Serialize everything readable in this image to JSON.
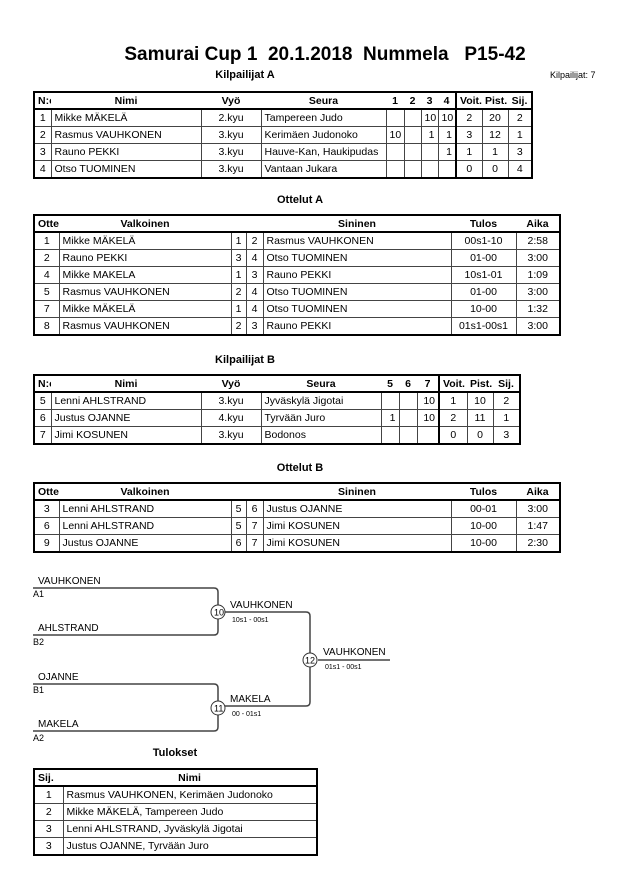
{
  "title": "Samurai Cup 1  20.1.2018  Nummela   P15-42",
  "competitor_count": "Kilpailijat: 7",
  "comp_a": {
    "title": "Kilpailijat A",
    "headers": [
      "N:o",
      "Nimi",
      "Vyö",
      "Seura",
      "1",
      "2",
      "3",
      "4",
      "Voit.",
      "Pist.",
      "Sij."
    ],
    "rows": [
      [
        "1",
        "Mikke MÄKELÄ",
        "2.kyu",
        "Tampereen Judo",
        "",
        "",
        "10",
        "10",
        "2",
        "20",
        "2"
      ],
      [
        "2",
        "Rasmus VAUHKONEN",
        "3.kyu",
        "Kerimäen Judonoko",
        "10",
        "",
        "1",
        "1",
        "3",
        "12",
        "1"
      ],
      [
        "3",
        "Rauno PEKKI",
        "3.kyu",
        "Hauve-Kan, Haukipudas",
        "",
        "",
        "",
        "1",
        "1",
        "1",
        "3"
      ],
      [
        "4",
        "Otso TUOMINEN",
        "3.kyu",
        "Vantaan Jukara",
        "",
        "",
        "",
        "",
        "0",
        "0",
        "4"
      ]
    ]
  },
  "matches_a": {
    "title": "Ottelut A",
    "headers": [
      "Ottelu",
      "Valkoinen",
      "",
      "",
      "Sininen",
      "Tulos",
      "Aika"
    ],
    "rows": [
      [
        "1",
        "Mikke MÄKELÄ",
        "1",
        "2",
        "Rasmus VAUHKONEN",
        "00s1-10",
        "2:58"
      ],
      [
        "2",
        "Rauno PEKKI",
        "3",
        "4",
        "Otso TUOMINEN",
        "01-00",
        "3:00"
      ],
      [
        "4",
        "Mikke MAKELA",
        "1",
        "3",
        "Rauno PEKKI",
        "10s1-01",
        "1:09"
      ],
      [
        "5",
        "Rasmus VAUHKONEN",
        "2",
        "4",
        "Otso TUOMINEN",
        "01-00",
        "3:00"
      ],
      [
        "7",
        "Mikke MÄKELÄ",
        "1",
        "4",
        "Otso TUOMINEN",
        "10-00",
        "1:32"
      ],
      [
        "8",
        "Rasmus VAUHKONEN",
        "2",
        "3",
        "Rauno PEKKI",
        "01s1-00s1",
        "3:00"
      ]
    ]
  },
  "comp_b": {
    "title": "Kilpailijat B",
    "headers": [
      "N:o",
      "Nimi",
      "Vyö",
      "Seura",
      "5",
      "6",
      "7",
      "Voit.",
      "Pist.",
      "Sij."
    ],
    "rows": [
      [
        "5",
        "Lenni AHLSTRAND",
        "3.kyu",
        "Jyväskylä Jigotai",
        "",
        "",
        "10",
        "1",
        "10",
        "2"
      ],
      [
        "6",
        "Justus OJANNE",
        "4.kyu",
        "Tyrvään Juro",
        "1",
        "",
        "10",
        "2",
        "11",
        "1"
      ],
      [
        "7",
        "Jimi KOSUNEN",
        "3.kyu",
        "Bodonos",
        "",
        "",
        "",
        "0",
        "0",
        "3"
      ]
    ]
  },
  "matches_b": {
    "title": "Ottelut B",
    "headers": [
      "Ottelu",
      "Valkoinen",
      "",
      "",
      "Sininen",
      "Tulos",
      "Aika"
    ],
    "rows": [
      [
        "3",
        "Lenni AHLSTRAND",
        "5",
        "6",
        "Justus OJANNE",
        "00-01",
        "3:00"
      ],
      [
        "6",
        "Lenni AHLSTRAND",
        "5",
        "7",
        "Jimi KOSUNEN",
        "10-00",
        "1:47"
      ],
      [
        "9",
        "Justus OJANNE",
        "6",
        "7",
        "Jimi KOSUNEN",
        "10-00",
        "2:30"
      ]
    ]
  },
  "bracket": {
    "entries": [
      {
        "name": "VAUHKONEN",
        "seed": "A1"
      },
      {
        "name": "AHLSTRAND",
        "seed": "B2"
      },
      {
        "name": "OJANNE",
        "seed": "B1"
      },
      {
        "name": "MAKELA",
        "seed": "A2"
      }
    ],
    "semis": [
      {
        "match": "10",
        "winner": "VAUHKONEN",
        "score": "10s1 - 00s1"
      },
      {
        "match": "11",
        "winner": "MAKELA",
        "score": "00 - 01s1"
      }
    ],
    "final": {
      "match": "12",
      "winner": "VAUHKONEN",
      "score": "01s1 - 00s1"
    }
  },
  "results": {
    "title": "Tulokset",
    "headers": [
      "Sij.",
      "Nimi"
    ],
    "rows": [
      [
        "1",
        "Rasmus VAUHKONEN, Kerimäen Judonoko"
      ],
      [
        "2",
        "Mikke MÄKELÄ, Tampereen Judo"
      ],
      [
        "3",
        "Lenni AHLSTRAND, Jyväskylä Jigotai"
      ],
      [
        "3",
        "Justus OJANNE, Tyrvään Juro"
      ]
    ]
  }
}
